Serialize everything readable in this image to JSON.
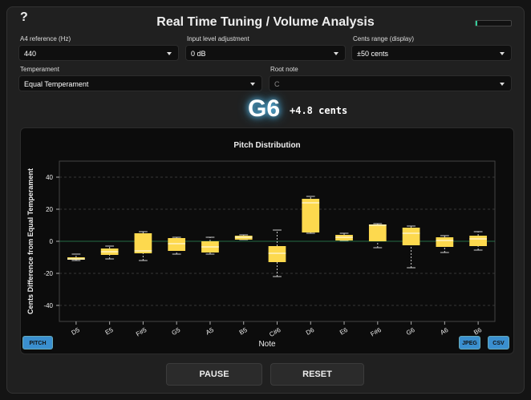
{
  "help": "?",
  "header": {
    "title": "Real Time Tuning / Volume Analysis"
  },
  "controls": [
    {
      "label": "A4 reference (Hz)",
      "value": "440"
    },
    {
      "label": "Input level adjustment",
      "value": "0 dB"
    },
    {
      "label": "Cents range (display)",
      "value": "±50 cents"
    },
    {
      "label": "Temperament",
      "value": "Equal Temperament"
    },
    {
      "label": "Root note",
      "value": "C"
    }
  ],
  "reading": {
    "note": "G6",
    "cents": "+4.8 cents"
  },
  "chart_data": {
    "type": "box",
    "title": "Pitch Distribution",
    "x_label": "Note",
    "y_label": "Cents Difference from Equal Temperament",
    "categories": [
      "D5",
      "E5",
      "F#5",
      "G5",
      "A5",
      "B5",
      "C#6",
      "D6",
      "E6",
      "F#6",
      "G6",
      "A6",
      "B6"
    ],
    "values": [
      {
        "min": -12,
        "q1": -11.5,
        "median": -11,
        "q3": -10,
        "max": -8
      },
      {
        "min": -11,
        "q1": -8.5,
        "median": -6.5,
        "q3": -4.5,
        "max": -3
      },
      {
        "min": -12,
        "q1": -7.5,
        "median": -6,
        "q3": 5,
        "max": 6
      },
      {
        "min": -8,
        "q1": -6,
        "median": -1.5,
        "q3": 2,
        "max": 2.5
      },
      {
        "min": -8,
        "q1": -7,
        "median": -3.5,
        "q3": 0,
        "max": 2.5
      },
      {
        "min": 1,
        "q1": 1,
        "median": 2.5,
        "q3": 3.5,
        "max": 4
      },
      {
        "min": -22,
        "q1": -13,
        "median": -7.5,
        "q3": -3,
        "max": 7
      },
      {
        "min": 5,
        "q1": 5.5,
        "median": 24,
        "q3": 26.5,
        "max": 28
      },
      {
        "min": 0.5,
        "q1": 0.5,
        "median": 2.5,
        "q3": 4,
        "max": 5
      },
      {
        "min": -4,
        "q1": 0,
        "median": 10,
        "q3": 10.5,
        "max": 11
      },
      {
        "min": -16.5,
        "q1": -2.5,
        "median": 5,
        "q3": 8.5,
        "max": 9.5
      },
      {
        "min": -7,
        "q1": -3.5,
        "median": 0.5,
        "q3": 2.5,
        "max": 3.5
      },
      {
        "min": -5.5,
        "q1": -3,
        "median": 1.5,
        "q3": 3.5,
        "max": 6
      }
    ],
    "color": "#fdd94e",
    "ylim": [
      -50,
      50
    ],
    "yticks": [
      -40,
      -20,
      0,
      20,
      40
    ],
    "grid": true
  },
  "buttons": {
    "pitch": "PITCH",
    "jpeg": "JPEG",
    "csv": "CSV",
    "pause": "PAUSE",
    "reset": "RESET"
  }
}
